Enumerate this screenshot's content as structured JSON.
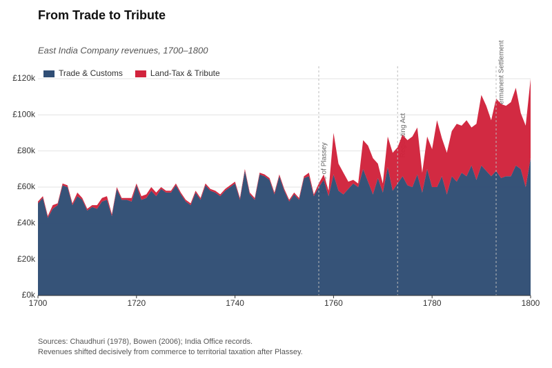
{
  "chart_data": {
    "type": "stacked-area",
    "title": "From Trade to Tribute",
    "subtitle": "East India Company revenues, 1700–1800",
    "notes": [
      "Sources: Chaudhuri (1978), Bowen (2006); India Office records.",
      "Revenues shifted decisively from commerce to territorial taxation after Plassey."
    ],
    "x": [
      1700,
      1701,
      1702,
      1703,
      1704,
      1705,
      1706,
      1707,
      1708,
      1709,
      1710,
      1711,
      1712,
      1713,
      1714,
      1715,
      1716,
      1717,
      1718,
      1719,
      1720,
      1721,
      1722,
      1723,
      1724,
      1725,
      1726,
      1727,
      1728,
      1729,
      1730,
      1731,
      1732,
      1733,
      1734,
      1735,
      1736,
      1737,
      1738,
      1739,
      1740,
      1741,
      1742,
      1743,
      1744,
      1745,
      1746,
      1747,
      1748,
      1749,
      1750,
      1751,
      1752,
      1753,
      1754,
      1755,
      1756,
      1757,
      1758,
      1759,
      1760,
      1761,
      1762,
      1763,
      1764,
      1765,
      1766,
      1767,
      1768,
      1769,
      1770,
      1771,
      1772,
      1773,
      1774,
      1775,
      1776,
      1777,
      1778,
      1779,
      1780,
      1781,
      1782,
      1783,
      1784,
      1785,
      1786,
      1787,
      1788,
      1789,
      1790,
      1791,
      1792,
      1793,
      1794,
      1795,
      1796,
      1797,
      1798,
      1799,
      1800
    ],
    "series": [
      {
        "name": "Trade & Customs",
        "color": "#2f4d74",
        "values": [
          51,
          54,
          43,
          48,
          50,
          61,
          60,
          50,
          55,
          53,
          47,
          49,
          48,
          52,
          53,
          44,
          59,
          53,
          53,
          52,
          61,
          53,
          54,
          58,
          55,
          59,
          57,
          57,
          61,
          56,
          52,
          50,
          57,
          53,
          61,
          58,
          57,
          55,
          58,
          60,
          62,
          53,
          69,
          56,
          53,
          67,
          66,
          64,
          56,
          66,
          58,
          52,
          56,
          53,
          65,
          66,
          55,
          60,
          64,
          55,
          67,
          58,
          56,
          59,
          62,
          60,
          70,
          63,
          56,
          65,
          57,
          71,
          58,
          62,
          66,
          61,
          60,
          67,
          57,
          70,
          60,
          60,
          66,
          56,
          66,
          63,
          68,
          66,
          72,
          64,
          72,
          69,
          66,
          69,
          65,
          66,
          66,
          72,
          70,
          60,
          76
        ]
      },
      {
        "name": "Land-Tax & Tribute",
        "color": "#d1233c",
        "values": [
          1,
          1,
          1,
          2,
          1,
          1,
          1,
          1,
          2,
          1,
          1,
          1,
          2,
          2,
          2,
          1,
          1,
          1,
          1,
          2,
          1,
          2,
          2,
          2,
          2,
          1,
          1,
          1,
          1,
          1,
          1,
          1,
          1,
          1,
          1,
          1,
          1,
          1,
          1,
          1,
          1,
          1,
          1,
          1,
          1,
          1,
          1,
          1,
          1,
          1,
          1,
          1,
          1,
          1,
          1,
          2,
          1,
          2,
          3,
          3,
          23,
          15,
          12,
          4,
          2,
          2,
          16,
          20,
          20,
          8,
          5,
          17,
          21,
          20,
          23,
          25,
          28,
          26,
          11,
          18,
          21,
          37,
          21,
          23,
          25,
          32,
          26,
          31,
          21,
          31,
          39,
          36,
          31,
          40,
          41,
          39,
          41,
          43,
          31,
          34,
          44
        ]
      }
    ],
    "xlim": [
      1700,
      1800
    ],
    "xticks": [
      1700,
      1720,
      1740,
      1760,
      1780,
      1800
    ],
    "ylim": [
      0,
      120
    ],
    "yticks": [
      {
        "value": 0,
        "label": "£0k"
      },
      {
        "value": 20,
        "label": "£20k"
      },
      {
        "value": 40,
        "label": "£40k"
      },
      {
        "value": 60,
        "label": "£60k"
      },
      {
        "value": 80,
        "label": "£80k"
      },
      {
        "value": 100,
        "label": "£100k"
      },
      {
        "value": 120,
        "label": "£120k"
      }
    ],
    "grid": true,
    "legend": "top-left",
    "annotations": [
      {
        "x": 1757,
        "label": "Battle of Plassey"
      },
      {
        "x": 1773,
        "label": "Regulating Act"
      },
      {
        "x": 1793,
        "label": "Permanent Settlement"
      }
    ]
  }
}
